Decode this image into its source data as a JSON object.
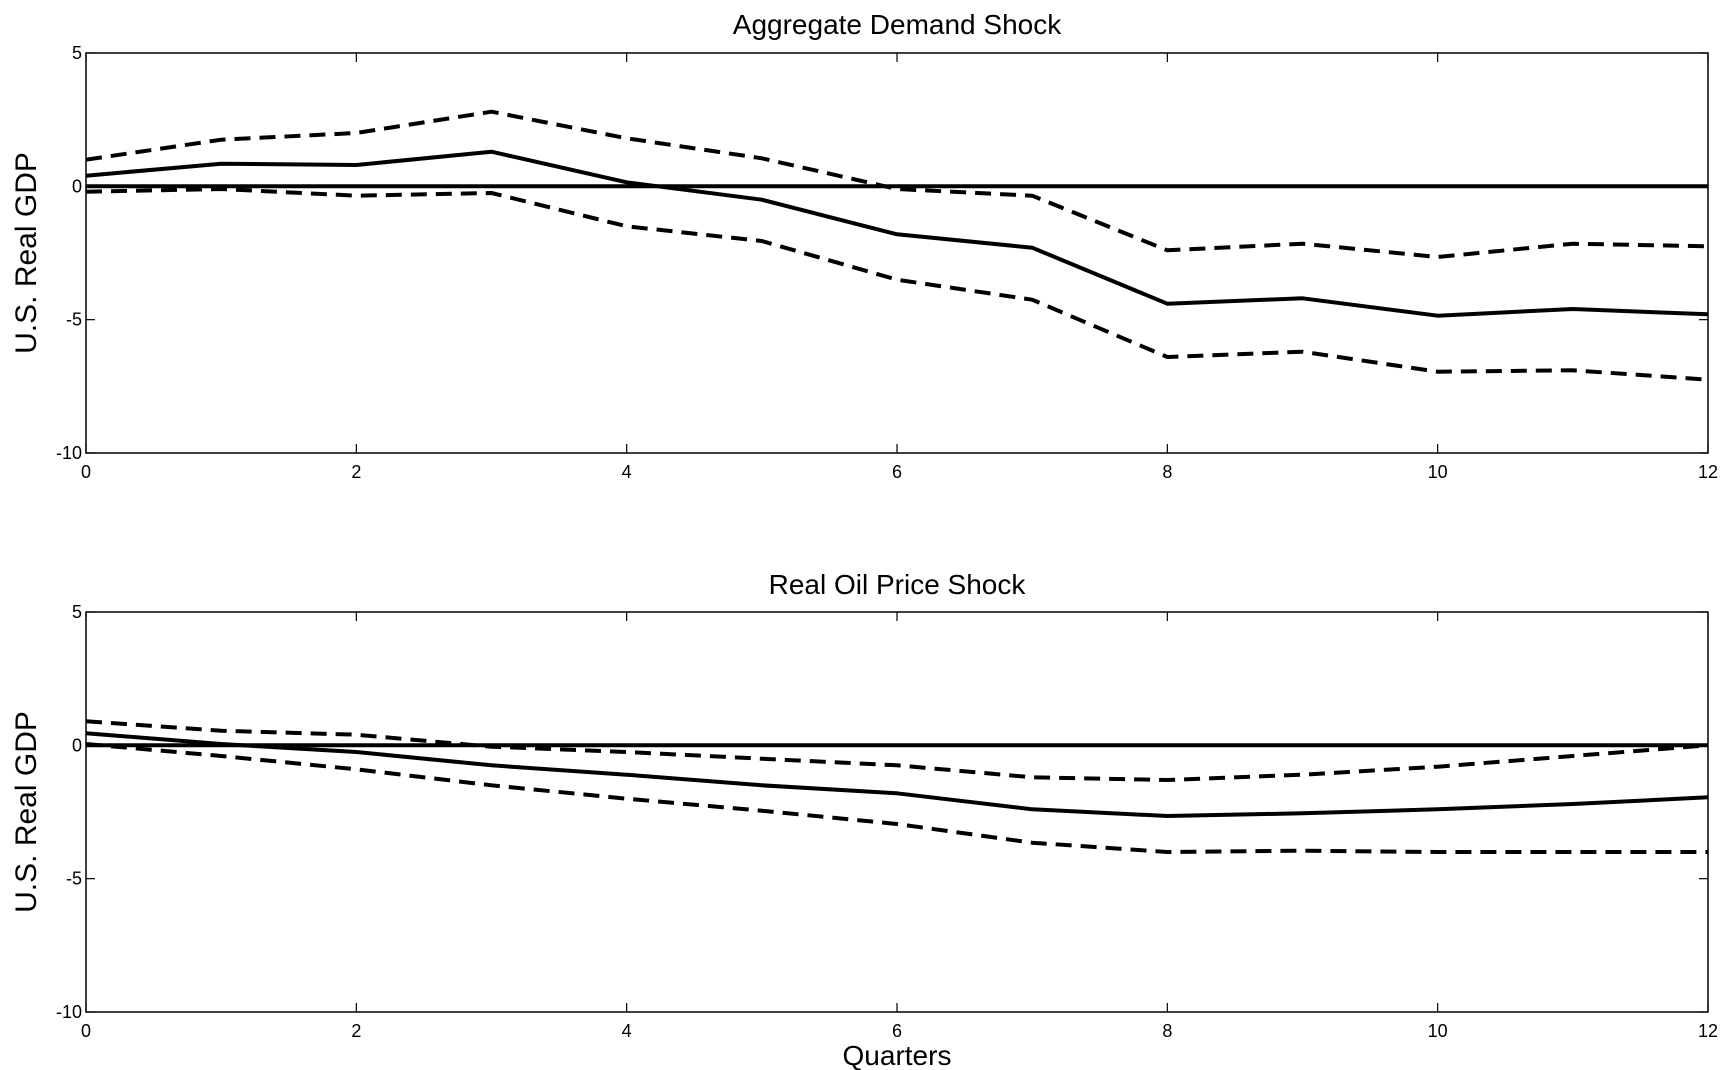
{
  "chart_data": [
    {
      "type": "line",
      "title": "Aggregate Demand Shock",
      "xlabel": "",
      "ylabel": "U.S. Real GDP",
      "xlim": [
        0,
        12
      ],
      "ylim": [
        -10,
        5
      ],
      "xticks": [
        0,
        2,
        4,
        6,
        8,
        10,
        12
      ],
      "yticks": [
        5,
        0,
        -5,
        -10
      ],
      "grid": false,
      "x": [
        0,
        1,
        2,
        3,
        4,
        5,
        6,
        7,
        8,
        9,
        10,
        11,
        12
      ],
      "series": [
        {
          "style": "solid",
          "values": [
            0.4,
            0.85,
            0.8,
            1.3,
            0.15,
            -0.5,
            -1.8,
            -2.3,
            -4.4,
            -4.2,
            -4.85,
            -4.6,
            -4.8
          ]
        },
        {
          "style": "dashed",
          "values": [
            1.0,
            1.75,
            2.0,
            2.8,
            1.8,
            1.05,
            -0.1,
            -0.35,
            -2.4,
            -2.15,
            -2.65,
            -2.15,
            -2.25
          ]
        },
        {
          "style": "dashed",
          "values": [
            -0.2,
            -0.1,
            -0.35,
            -0.25,
            -1.5,
            -2.05,
            -3.5,
            -4.25,
            -6.4,
            -6.2,
            -6.95,
            -6.9,
            -7.25
          ]
        },
        {
          "style": "solid",
          "values": [
            0,
            0,
            0,
            0,
            0,
            0,
            0,
            0,
            0,
            0,
            0,
            0,
            0
          ]
        }
      ]
    },
    {
      "type": "line",
      "title": "Real Oil Price Shock",
      "xlabel": "Quarters",
      "ylabel": "U.S. Real GDP",
      "xlim": [
        0,
        12
      ],
      "ylim": [
        -10,
        5
      ],
      "xticks": [
        0,
        2,
        4,
        6,
        8,
        10,
        12
      ],
      "yticks": [
        5,
        0,
        -5,
        -10
      ],
      "grid": false,
      "x": [
        0,
        1,
        2,
        3,
        4,
        5,
        6,
        7,
        8,
        9,
        10,
        11,
        12
      ],
      "series": [
        {
          "style": "solid",
          "values": [
            0.45,
            0.05,
            -0.25,
            -0.75,
            -1.1,
            -1.5,
            -1.8,
            -2.4,
            -2.65,
            -2.55,
            -2.4,
            -2.2,
            -1.95
          ]
        },
        {
          "style": "dashed",
          "values": [
            0.9,
            0.55,
            0.4,
            -0.05,
            -0.25,
            -0.5,
            -0.75,
            -1.2,
            -1.3,
            -1.1,
            -0.8,
            -0.4,
            0.0
          ]
        },
        {
          "style": "dashed",
          "values": [
            0.05,
            -0.4,
            -0.9,
            -1.5,
            -2.0,
            -2.45,
            -2.95,
            -3.65,
            -4.0,
            -3.95,
            -4.0,
            -4.0,
            -4.0
          ]
        },
        {
          "style": "solid",
          "values": [
            0,
            0,
            0,
            0,
            0,
            0,
            0,
            0,
            0,
            0,
            0,
            0,
            0
          ]
        }
      ]
    }
  ]
}
